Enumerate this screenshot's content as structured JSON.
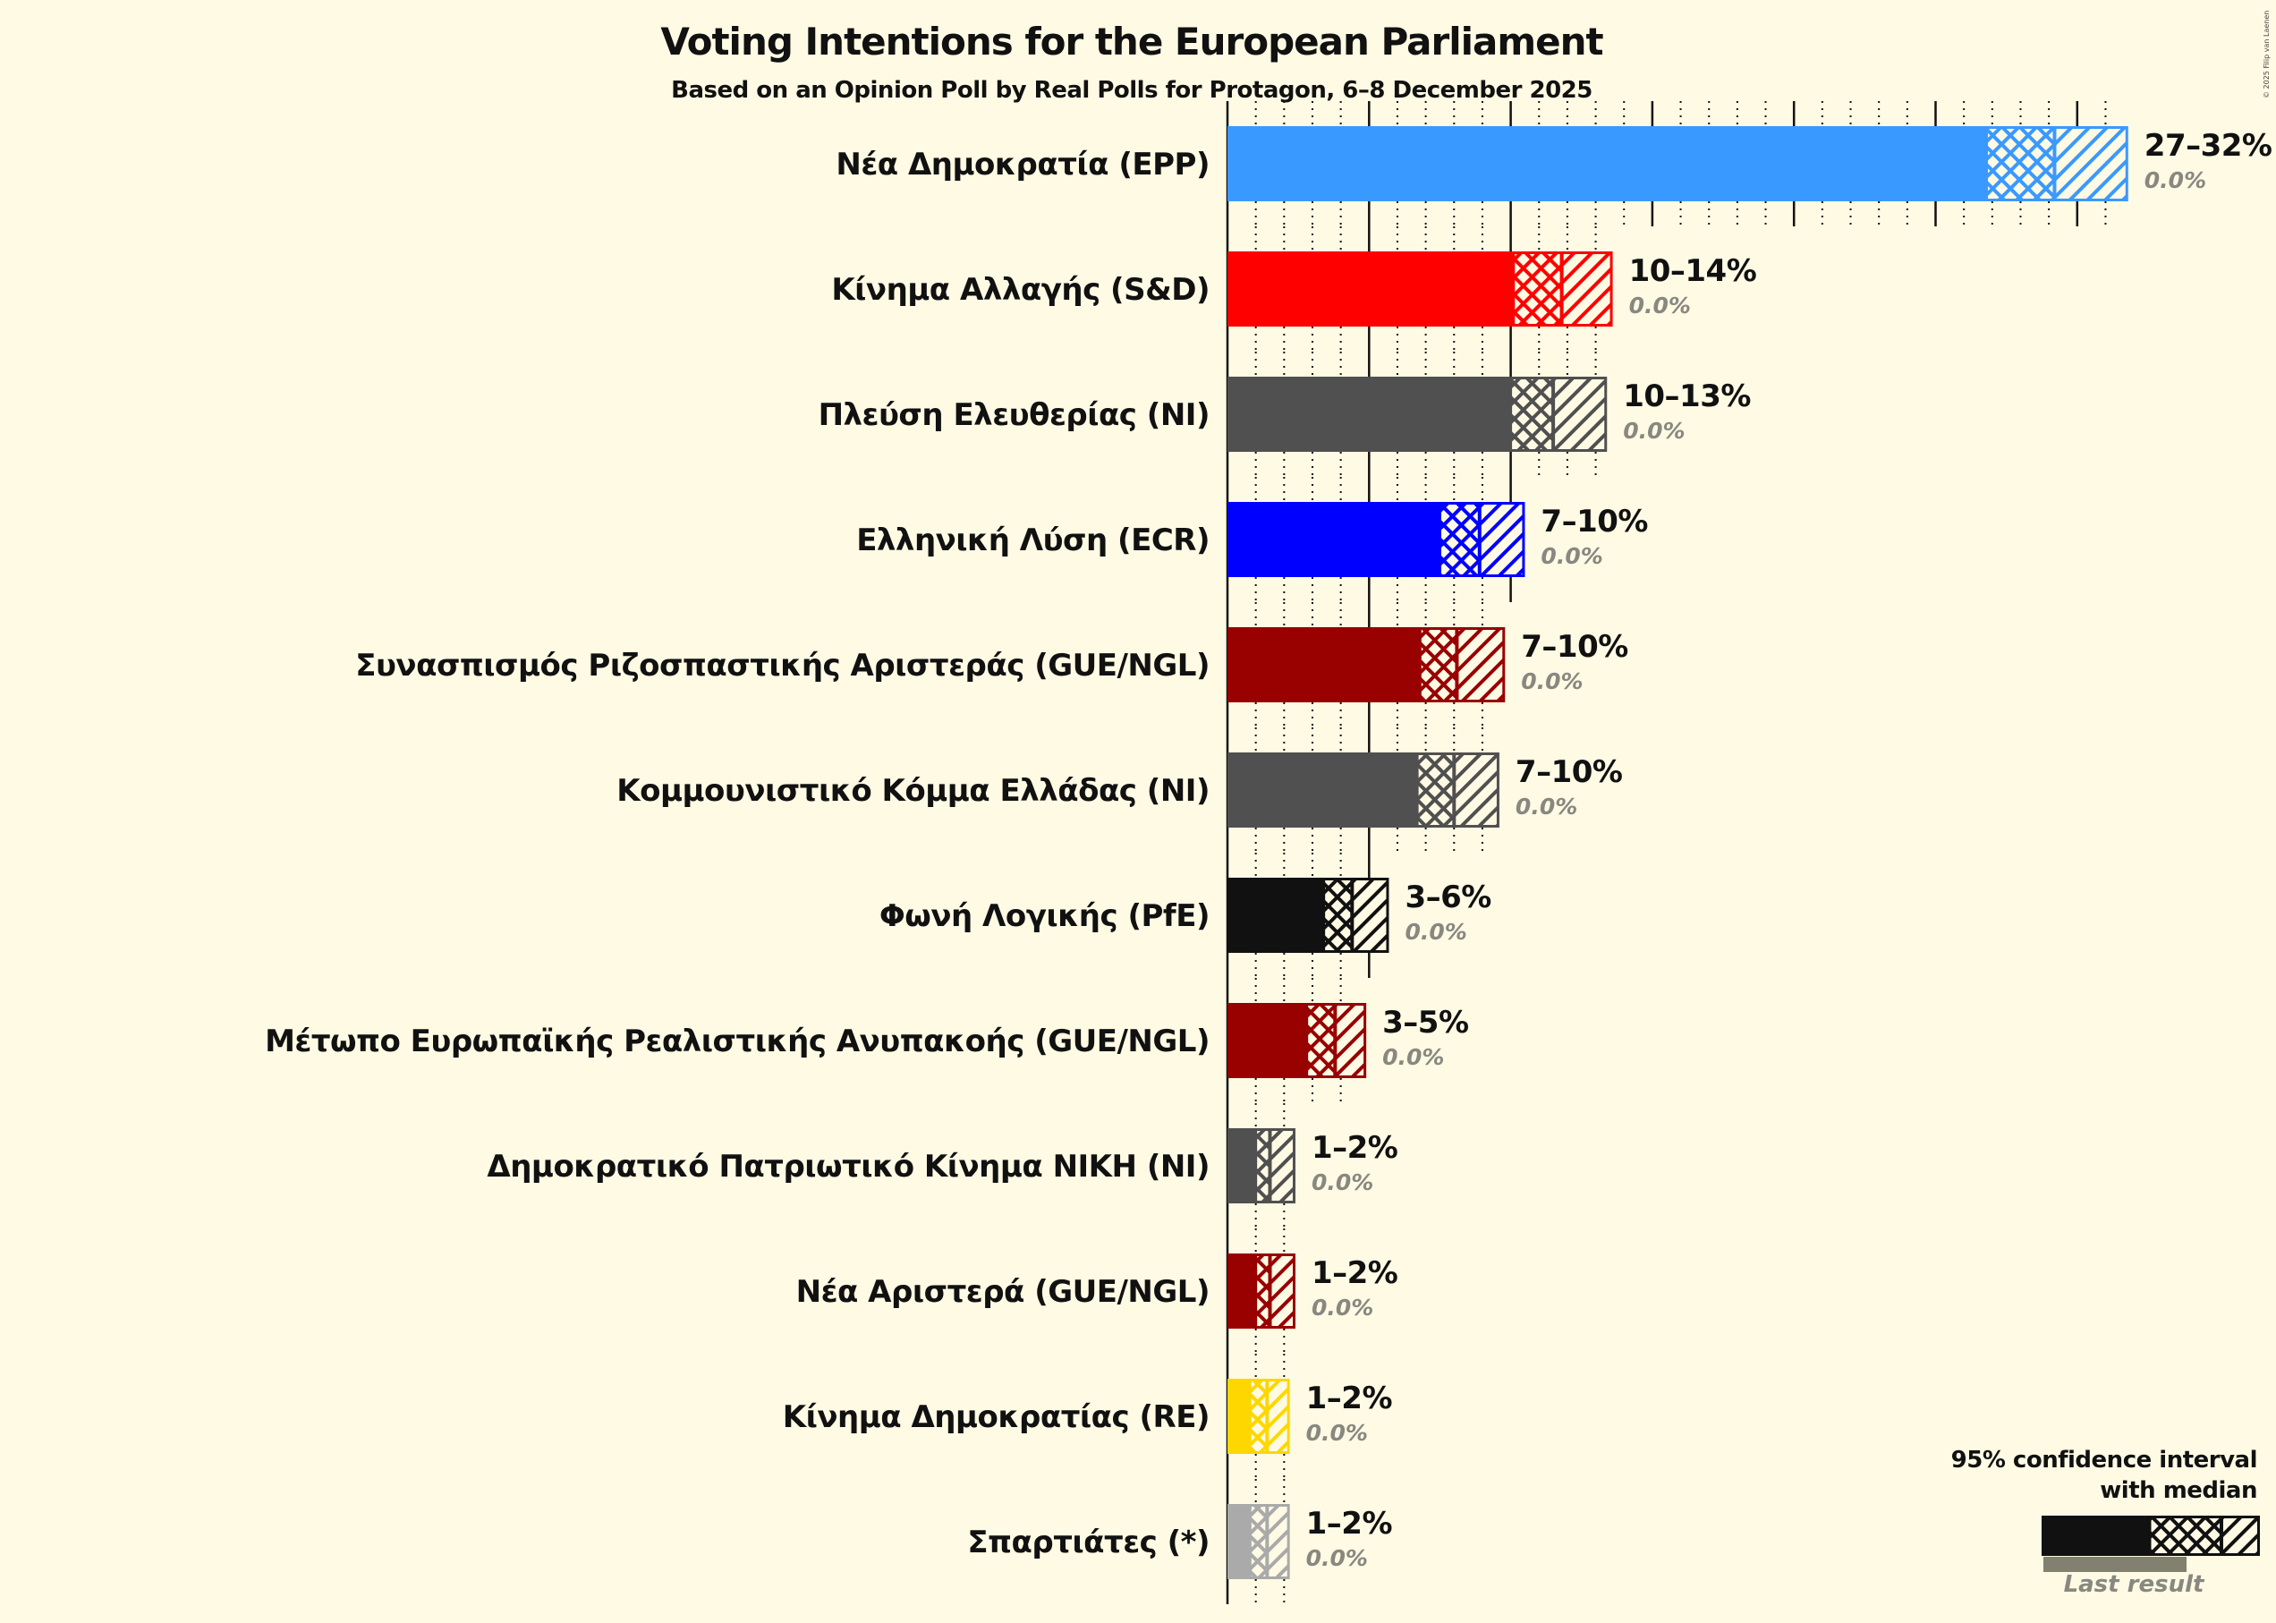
{
  "header": {
    "title": "Voting Intentions for the European Parliament",
    "subtitle": "Based on an Opinion Poll by Real Polls for Protagon, 6–8 December 2025",
    "copyright": "© 2025 Filip van Laenen"
  },
  "legend": {
    "title_line1": "95% confidence interval",
    "title_line2": "with median",
    "last_result": "Last result",
    "bar_color": "#111111",
    "last_result_color": "#82806f"
  },
  "colors": {
    "background": "#fffae4",
    "last_result_text": "#888880",
    "gridline": "#111111"
  },
  "chart_data": {
    "type": "bar",
    "orientation": "horizontal",
    "title": "Voting Intentions for the European Parliament",
    "subtitle": "Based on an Opinion Poll by Real Polls for Protagon, 6–8 December 2025",
    "xlabel": "",
    "ylabel": "",
    "xlim": [
      0,
      33
    ],
    "grid": {
      "major_step": 5,
      "minor_step": 1
    },
    "legend_position": "bottom-right",
    "categories": [
      "Νέα Δημοκρατία (EPP)",
      "Κίνημα Αλλαγής (S&D)",
      "Πλεύση Ελευθερίας (NI)",
      "Ελληνική Λύση (ECR)",
      "Συνασπισμός Ριζοσπαστικής Αριστεράς (GUE/NGL)",
      "Κομμουνιστικό Κόμμα Ελλάδας (NI)",
      "Φωνή Λογικής (PfE)",
      "Μέτωπο Ευρωπαϊκής Ρεαλιστικής Ανυπακοής (GUE/NGL)",
      "Δημοκρατικό Πατριωτικό Κίνημα ΝΙΚΗ (NI)",
      "Νέα Αριστερά (GUE/NGL)",
      "Κίνημα Δημοκρατίας (RE)",
      "Σπαρτιάτες (*)"
    ],
    "series": [
      {
        "name": "CI low",
        "values": [
          26.8,
          10.1,
          10.0,
          7.5,
          6.8,
          6.7,
          3.4,
          2.8,
          1.0,
          1.0,
          0.8,
          0.8
        ]
      },
      {
        "name": "Median",
        "values": [
          29.2,
          11.8,
          11.5,
          8.9,
          8.1,
          8.0,
          4.4,
          3.8,
          1.5,
          1.5,
          1.4,
          1.4
        ]
      },
      {
        "name": "CI high",
        "values": [
          31.8,
          13.6,
          13.4,
          10.5,
          9.8,
          9.6,
          5.7,
          4.9,
          2.4,
          2.4,
          2.2,
          2.2
        ]
      },
      {
        "name": "Last result",
        "values": [
          0.0,
          0.0,
          0.0,
          0.0,
          0.0,
          0.0,
          0.0,
          0.0,
          0.0,
          0.0,
          0.0,
          0.0
        ]
      }
    ],
    "parties": [
      {
        "label": "Νέα Δημοκρατία (EPP)",
        "range": "27–32%",
        "last": "0.0%",
        "color": "#3a99ff",
        "low": 26.8,
        "median": 29.2,
        "high": 31.8
      },
      {
        "label": "Κίνημα Αλλαγής (S&D)",
        "range": "10–14%",
        "last": "0.0%",
        "color": "#ff0000",
        "low": 10.1,
        "median": 11.8,
        "high": 13.6
      },
      {
        "label": "Πλεύση Ελευθερίας (NI)",
        "range": "10–13%",
        "last": "0.0%",
        "color": "#505050",
        "low": 10.0,
        "median": 11.5,
        "high": 13.4
      },
      {
        "label": "Ελληνική Λύση (ECR)",
        "range": "7–10%",
        "last": "0.0%",
        "color": "#0000ff",
        "low": 7.5,
        "median": 8.9,
        "high": 10.5
      },
      {
        "label": "Συνασπισμός Ριζοσπαστικής Αριστεράς (GUE/NGL)",
        "range": "7–10%",
        "last": "0.0%",
        "color": "#990000",
        "low": 6.8,
        "median": 8.1,
        "high": 9.8
      },
      {
        "label": "Κομμουνιστικό Κόμμα Ελλάδας (NI)",
        "range": "7–10%",
        "last": "0.0%",
        "color": "#505050",
        "low": 6.7,
        "median": 8.0,
        "high": 9.6
      },
      {
        "label": "Φωνή Λογικής (PfE)",
        "range": "3–6%",
        "last": "0.0%",
        "color": "#111111",
        "low": 3.4,
        "median": 4.4,
        "high": 5.7
      },
      {
        "label": "Μέτωπο Ευρωπαϊκής Ρεαλιστικής Ανυπακοής (GUE/NGL)",
        "range": "3–5%",
        "last": "0.0%",
        "color": "#990000",
        "low": 2.8,
        "median": 3.8,
        "high": 4.9
      },
      {
        "label": "Δημοκρατικό Πατριωτικό Κίνημα ΝΙΚΗ (NI)",
        "range": "1–2%",
        "last": "0.0%",
        "color": "#505050",
        "low": 1.0,
        "median": 1.5,
        "high": 2.4
      },
      {
        "label": "Νέα Αριστερά (GUE/NGL)",
        "range": "1–2%",
        "last": "0.0%",
        "color": "#990000",
        "low": 1.0,
        "median": 1.5,
        "high": 2.4
      },
      {
        "label": "Κίνημα Δημοκρατίας (RE)",
        "range": "1–2%",
        "last": "0.0%",
        "color": "#ffd700",
        "low": 0.8,
        "median": 1.4,
        "high": 2.2
      },
      {
        "label": "Σπαρτιάτες (*)",
        "range": "1–2%",
        "last": "0.0%",
        "color": "#aaaaaa",
        "low": 0.8,
        "median": 1.4,
        "high": 2.2
      }
    ]
  }
}
